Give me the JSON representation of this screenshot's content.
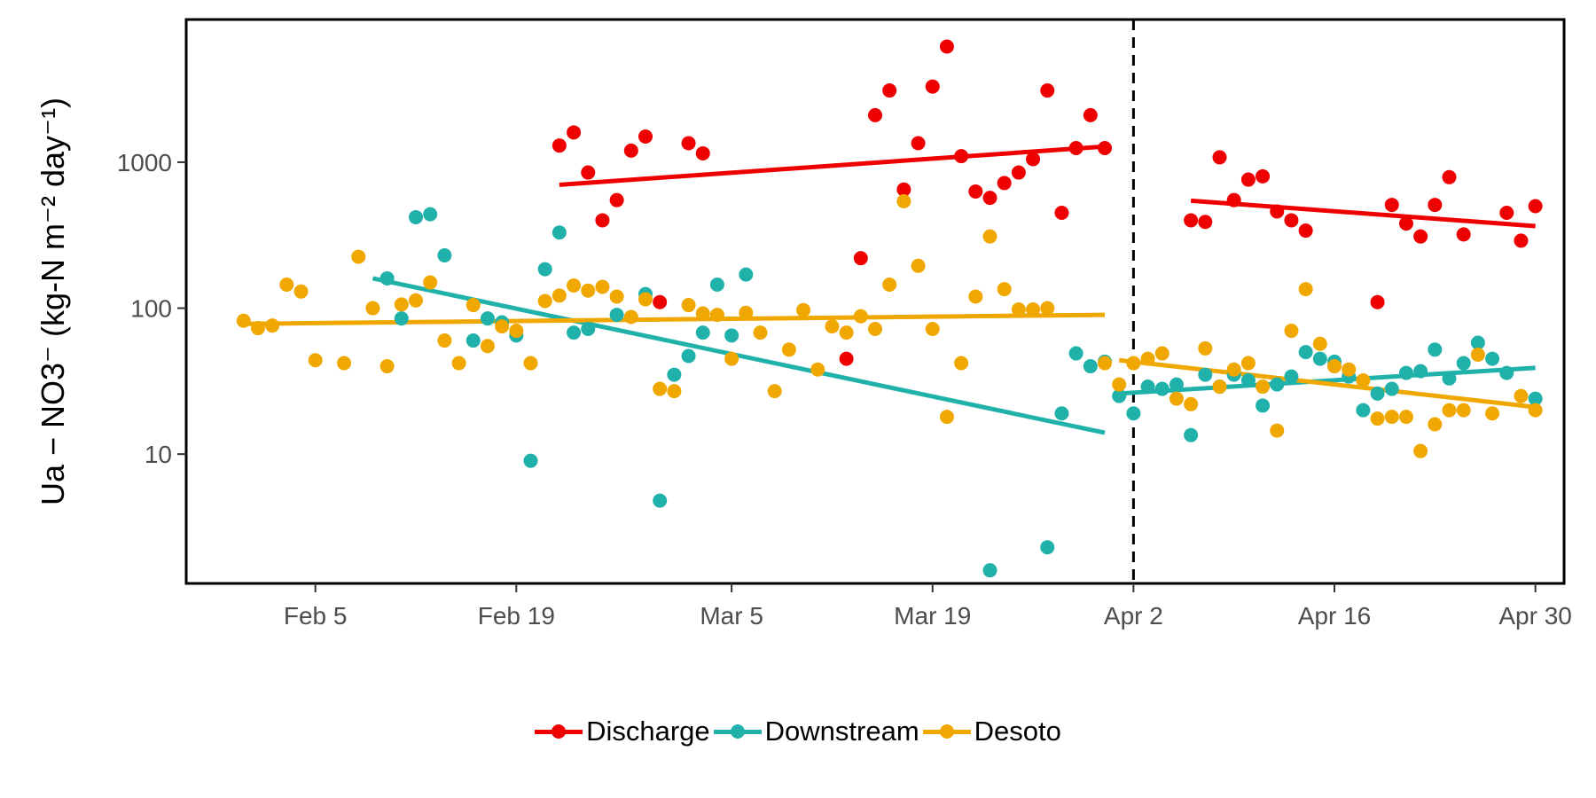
{
  "chart_data": {
    "type": "scatter",
    "title": "",
    "ylabel": "Ua − NO3⁻ (kg-N m⁻² day⁻¹)",
    "y_scale": "log10",
    "ylim": [
      1.3,
      9500
    ],
    "yticks": [
      10,
      100,
      1000
    ],
    "ytick_labels": [
      "10",
      "100",
      "1000"
    ],
    "x_type": "date",
    "xlim": [
      "2024-01-27",
      "2024-05-02"
    ],
    "xticks": [
      "2024-02-05",
      "2024-02-19",
      "2024-03-05",
      "2024-03-19",
      "2024-04-02",
      "2024-04-16",
      "2024-04-30"
    ],
    "xtick_labels": [
      "Feb  5",
      "Feb 19",
      "Mar  5",
      "Mar 19",
      "Apr  2",
      "Apr 16",
      "Apr 30"
    ],
    "vline": {
      "x": "2024-04-02",
      "style": "dashed"
    },
    "grid": false,
    "legend_position": "bottom",
    "series": [
      {
        "name": "Discharge",
        "color": "#EE0000",
        "points": [
          [
            "2024-02-22",
            1300
          ],
          [
            "2024-02-23",
            1600
          ],
          [
            "2024-02-24",
            850
          ],
          [
            "2024-02-25",
            400
          ],
          [
            "2024-02-26",
            550
          ],
          [
            "2024-02-27",
            1200
          ],
          [
            "2024-02-28",
            1500
          ],
          [
            "2024-02-29",
            110
          ],
          [
            "2024-03-02",
            1350
          ],
          [
            "2024-03-03",
            1150
          ],
          [
            "2024-03-13",
            45
          ],
          [
            "2024-03-14",
            220
          ],
          [
            "2024-03-15",
            2100
          ],
          [
            "2024-03-16",
            3100
          ],
          [
            "2024-03-17",
            650
          ],
          [
            "2024-03-18",
            1350
          ],
          [
            "2024-03-19",
            3300
          ],
          [
            "2024-03-20",
            6200
          ],
          [
            "2024-03-21",
            1100
          ],
          [
            "2024-03-22",
            630
          ],
          [
            "2024-03-23",
            570
          ],
          [
            "2024-03-24",
            720
          ],
          [
            "2024-03-25",
            850
          ],
          [
            "2024-03-26",
            1050
          ],
          [
            "2024-03-27",
            3100
          ],
          [
            "2024-03-28",
            450
          ],
          [
            "2024-03-29",
            1250
          ],
          [
            "2024-03-30",
            2100
          ],
          [
            "2024-03-31",
            1250
          ],
          [
            "2024-04-06",
            400
          ],
          [
            "2024-04-07",
            390
          ],
          [
            "2024-04-08",
            1080
          ],
          [
            "2024-04-09",
            550
          ],
          [
            "2024-04-10",
            760
          ],
          [
            "2024-04-11",
            800
          ],
          [
            "2024-04-12",
            460
          ],
          [
            "2024-04-13",
            400
          ],
          [
            "2024-04-14",
            340
          ],
          [
            "2024-04-19",
            110
          ],
          [
            "2024-04-20",
            510
          ],
          [
            "2024-04-21",
            380
          ],
          [
            "2024-04-22",
            310
          ],
          [
            "2024-04-23",
            510
          ],
          [
            "2024-04-24",
            790
          ],
          [
            "2024-04-25",
            320
          ],
          [
            "2024-04-28",
            450
          ],
          [
            "2024-04-29",
            290
          ],
          [
            "2024-04-30",
            500
          ]
        ],
        "trends": [
          {
            "x": [
              "2024-02-22",
              "2024-03-31"
            ],
            "y": [
              700,
              1280
            ]
          },
          {
            "x": [
              "2024-04-06",
              "2024-04-30"
            ],
            "y": [
              545,
              365
            ]
          }
        ]
      },
      {
        "name": "Downstream",
        "color": "#20B2AA",
        "points": [
          [
            "2024-02-10",
            160
          ],
          [
            "2024-02-11",
            85
          ],
          [
            "2024-02-12",
            420
          ],
          [
            "2024-02-13",
            440
          ],
          [
            "2024-02-14",
            230
          ],
          [
            "2024-02-16",
            60
          ],
          [
            "2024-02-17",
            85
          ],
          [
            "2024-02-18",
            80
          ],
          [
            "2024-02-19",
            65
          ],
          [
            "2024-02-20",
            9
          ],
          [
            "2024-02-21",
            185
          ],
          [
            "2024-02-22",
            330
          ],
          [
            "2024-02-23",
            68
          ],
          [
            "2024-02-24",
            72
          ],
          [
            "2024-02-26",
            90
          ],
          [
            "2024-02-28",
            125
          ],
          [
            "2024-02-29",
            4.8
          ],
          [
            "2024-03-01",
            35
          ],
          [
            "2024-03-02",
            47
          ],
          [
            "2024-03-03",
            68
          ],
          [
            "2024-03-04",
            145
          ],
          [
            "2024-03-05",
            65
          ],
          [
            "2024-03-06",
            170
          ],
          [
            "2024-03-23",
            1.6
          ],
          [
            "2024-03-27",
            2.3
          ],
          [
            "2024-03-28",
            19
          ],
          [
            "2024-03-29",
            49
          ],
          [
            "2024-03-30",
            40
          ],
          [
            "2024-03-31",
            43
          ],
          [
            "2024-04-01",
            25
          ],
          [
            "2024-04-02",
            19
          ],
          [
            "2024-04-03",
            29
          ],
          [
            "2024-04-04",
            28
          ],
          [
            "2024-04-05",
            30
          ],
          [
            "2024-04-06",
            13.5
          ],
          [
            "2024-04-07",
            35
          ],
          [
            "2024-04-08",
            29
          ],
          [
            "2024-04-09",
            35
          ],
          [
            "2024-04-10",
            32
          ],
          [
            "2024-04-11",
            21.5
          ],
          [
            "2024-04-12",
            30
          ],
          [
            "2024-04-13",
            34
          ],
          [
            "2024-04-14",
            50
          ],
          [
            "2024-04-15",
            45
          ],
          [
            "2024-04-16",
            43
          ],
          [
            "2024-04-17",
            34
          ],
          [
            "2024-04-18",
            20
          ],
          [
            "2024-04-19",
            26
          ],
          [
            "2024-04-20",
            28
          ],
          [
            "2024-04-21",
            36
          ],
          [
            "2024-04-22",
            37
          ],
          [
            "2024-04-23",
            52
          ],
          [
            "2024-04-24",
            33
          ],
          [
            "2024-04-25",
            42
          ],
          [
            "2024-04-26",
            58
          ],
          [
            "2024-04-27",
            45
          ],
          [
            "2024-04-28",
            36
          ],
          [
            "2024-04-30",
            24
          ]
        ],
        "trends": [
          {
            "x": [
              "2024-02-09",
              "2024-03-31"
            ],
            "y": [
              160,
              14
            ]
          },
          {
            "x": [
              "2024-04-01",
              "2024-04-30"
            ],
            "y": [
              26,
              39
            ]
          }
        ]
      },
      {
        "name": "Desoto",
        "color": "#F0A800",
        "points": [
          [
            "2024-01-31",
            82
          ],
          [
            "2024-02-01",
            73
          ],
          [
            "2024-02-02",
            76
          ],
          [
            "2024-02-03",
            145
          ],
          [
            "2024-02-04",
            130
          ],
          [
            "2024-02-05",
            44
          ],
          [
            "2024-02-07",
            42
          ],
          [
            "2024-02-08",
            225
          ],
          [
            "2024-02-09",
            100
          ],
          [
            "2024-02-10",
            40
          ],
          [
            "2024-02-11",
            106
          ],
          [
            "2024-02-12",
            113
          ],
          [
            "2024-02-13",
            150
          ],
          [
            "2024-02-14",
            60
          ],
          [
            "2024-02-15",
            42
          ],
          [
            "2024-02-16",
            105
          ],
          [
            "2024-02-17",
            55
          ],
          [
            "2024-02-18",
            75
          ],
          [
            "2024-02-19",
            70
          ],
          [
            "2024-02-20",
            42
          ],
          [
            "2024-02-21",
            112
          ],
          [
            "2024-02-22",
            122
          ],
          [
            "2024-02-23",
            143
          ],
          [
            "2024-02-24",
            132
          ],
          [
            "2024-02-25",
            140
          ],
          [
            "2024-02-26",
            120
          ],
          [
            "2024-02-27",
            87
          ],
          [
            "2024-02-28",
            115
          ],
          [
            "2024-02-29",
            28
          ],
          [
            "2024-03-01",
            27
          ],
          [
            "2024-03-02",
            105
          ],
          [
            "2024-03-03",
            92
          ],
          [
            "2024-03-04",
            90
          ],
          [
            "2024-03-05",
            45
          ],
          [
            "2024-03-06",
            93
          ],
          [
            "2024-03-07",
            68
          ],
          [
            "2024-03-08",
            27
          ],
          [
            "2024-03-09",
            52
          ],
          [
            "2024-03-10",
            97
          ],
          [
            "2024-03-11",
            38
          ],
          [
            "2024-03-12",
            75
          ],
          [
            "2024-03-13",
            68
          ],
          [
            "2024-03-14",
            88
          ],
          [
            "2024-03-15",
            72
          ],
          [
            "2024-03-16",
            145
          ],
          [
            "2024-03-17",
            540
          ],
          [
            "2024-03-18",
            195
          ],
          [
            "2024-03-19",
            72
          ],
          [
            "2024-03-20",
            18
          ],
          [
            "2024-03-21",
            42
          ],
          [
            "2024-03-22",
            120
          ],
          [
            "2024-03-23",
            310
          ],
          [
            "2024-03-24",
            135
          ],
          [
            "2024-03-25",
            98
          ],
          [
            "2024-03-26",
            98
          ],
          [
            "2024-03-27",
            100
          ],
          [
            "2024-03-31",
            42
          ],
          [
            "2024-04-01",
            30
          ],
          [
            "2024-04-02",
            42
          ],
          [
            "2024-04-03",
            45
          ],
          [
            "2024-04-04",
            49
          ],
          [
            "2024-04-05",
            24
          ],
          [
            "2024-04-06",
            22
          ],
          [
            "2024-04-07",
            53
          ],
          [
            "2024-04-08",
            29
          ],
          [
            "2024-04-09",
            38
          ],
          [
            "2024-04-10",
            42
          ],
          [
            "2024-04-11",
            29
          ],
          [
            "2024-04-12",
            14.5
          ],
          [
            "2024-04-13",
            70
          ],
          [
            "2024-04-14",
            135
          ],
          [
            "2024-04-15",
            57
          ],
          [
            "2024-04-16",
            40
          ],
          [
            "2024-04-17",
            38
          ],
          [
            "2024-04-18",
            32
          ],
          [
            "2024-04-19",
            17.5
          ],
          [
            "2024-04-20",
            18
          ],
          [
            "2024-04-21",
            18
          ],
          [
            "2024-04-22",
            10.5
          ],
          [
            "2024-04-23",
            16
          ],
          [
            "2024-04-24",
            20
          ],
          [
            "2024-04-25",
            20
          ],
          [
            "2024-04-26",
            48
          ],
          [
            "2024-04-27",
            19
          ],
          [
            "2024-04-29",
            25
          ],
          [
            "2024-04-30",
            20
          ]
        ],
        "trends": [
          {
            "x": [
              "2024-01-31",
              "2024-03-31"
            ],
            "y": [
              78,
              90
            ]
          },
          {
            "x": [
              "2024-04-01",
              "2024-04-30"
            ],
            "y": [
              44,
              21
            ]
          }
        ]
      }
    ]
  }
}
